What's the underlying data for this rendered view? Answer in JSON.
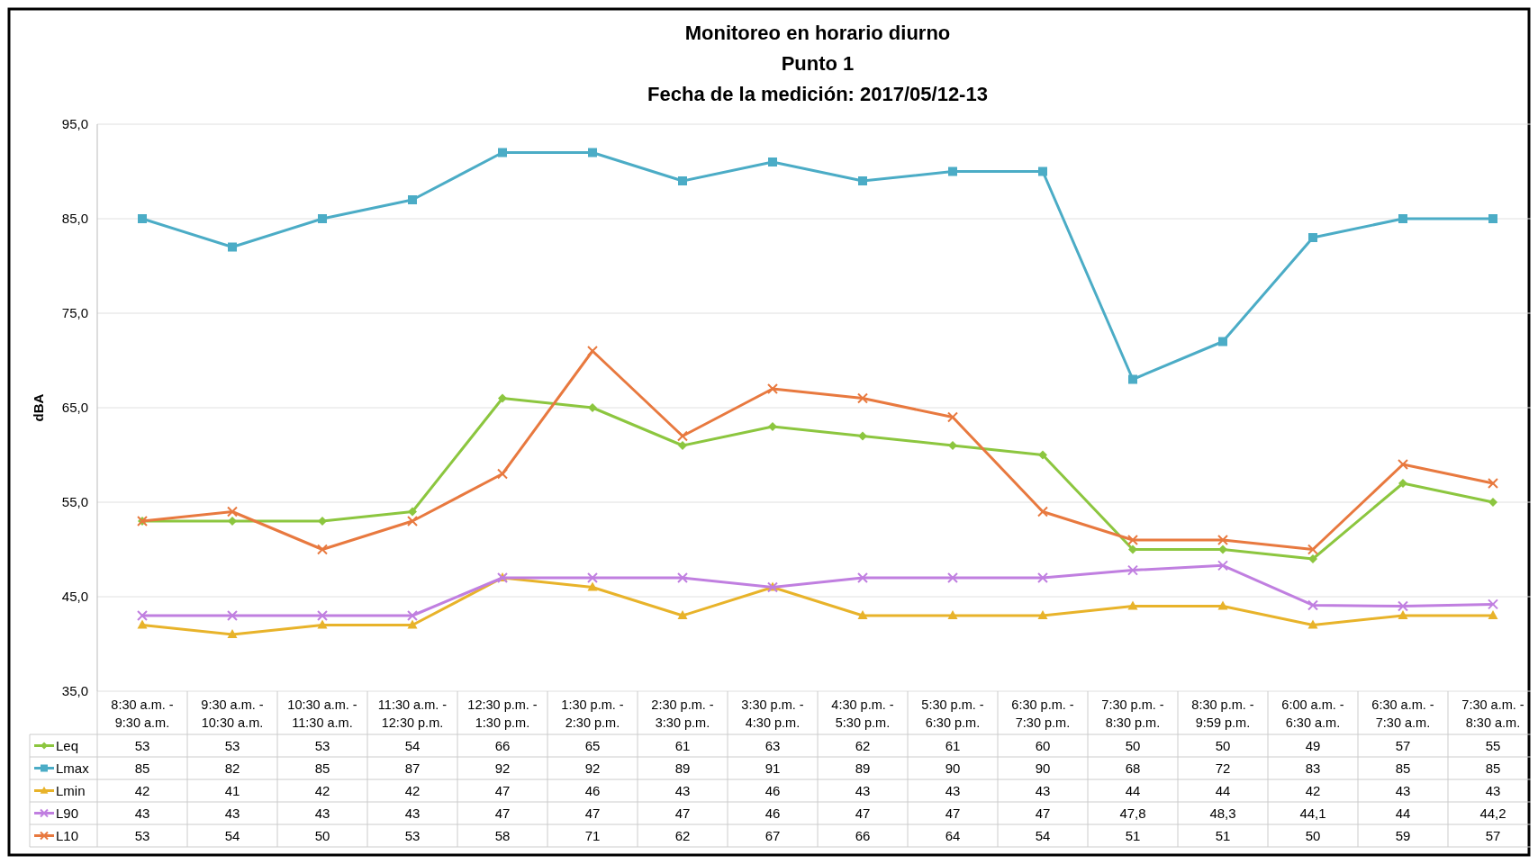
{
  "chart_data": {
    "type": "line",
    "title": "Monitoreo en horario diurno",
    "subtitle": "Punto 1\nFecha de la medición: 2017/05/12-13",
    "ylabel": "dBA",
    "categories": [
      "8:30 a.m. - 9:30 a.m.",
      "9:30 a.m. - 10:30 a.m.",
      "10:30 a.m. - 11:30 a.m.",
      "11:30 a.m. - 12:30 p.m.",
      "12:30 p.m. - 1:30 p.m.",
      "1:30 p.m. - 2:30 p.m.",
      "2:30 p.m. - 3:30 p.m.",
      "3:30 p.m. - 4:30 p.m.",
      "4:30 p.m. - 5:30 p.m.",
      "5:30 p.m. - 6:30 p.m.",
      "6:30 p.m. - 7:30 p.m.",
      "7:30 p.m. - 8:30 p.m.",
      "8:30 p.m. - 9:59 p.m.",
      "6:00 a.m. - 6:30 a.m.",
      "6:30 a.m. - 7:30 a.m.",
      "7:30 a.m. - 8:30 a.m."
    ],
    "series": [
      {
        "name": "Leq",
        "color": "#8cc63f",
        "marker": "diamond",
        "values": [
          53,
          53,
          53,
          54,
          66,
          65,
          61,
          63,
          62,
          61,
          60,
          50,
          50,
          49,
          57,
          55
        ]
      },
      {
        "name": "Lmax",
        "color": "#4bacc6",
        "marker": "square",
        "values": [
          85,
          82,
          85,
          87,
          92,
          92,
          89,
          91,
          89,
          90,
          90,
          68,
          72,
          83,
          85,
          85
        ]
      },
      {
        "name": "Lmin",
        "color": "#e8b32a",
        "marker": "triangle",
        "values": [
          42,
          41,
          42,
          42,
          47,
          46,
          43,
          46,
          43,
          43,
          43,
          44,
          44,
          42,
          43,
          43
        ]
      },
      {
        "name": "L90",
        "color": "#c07fe0",
        "marker": "cross",
        "values": [
          43,
          43,
          43,
          43,
          47,
          47,
          47,
          46,
          47,
          47,
          47,
          47.8,
          48.3,
          44.1,
          44,
          44.2
        ],
        "value_labels": [
          "43",
          "43",
          "43",
          "43",
          "47",
          "47",
          "47",
          "46",
          "47",
          "47",
          "47",
          "47,8",
          "48,3",
          "44,1",
          "44",
          "44,2"
        ]
      },
      {
        "name": "L10",
        "color": "#e8793f",
        "marker": "cross",
        "values": [
          53,
          54,
          50,
          53,
          58,
          71,
          62,
          67,
          66,
          64,
          54,
          51,
          51,
          50,
          59,
          57
        ]
      }
    ],
    "ylim": [
      35,
      95
    ],
    "yticks": [
      {
        "value": 35,
        "label": "35,0"
      },
      {
        "value": 45,
        "label": "45,0"
      },
      {
        "value": 55,
        "label": "55,0"
      },
      {
        "value": 65,
        "label": "65,0"
      },
      {
        "value": 75,
        "label": "75,0"
      },
      {
        "value": 85,
        "label": "85,0"
      },
      {
        "value": 95,
        "label": "95,0"
      }
    ],
    "grid": "y",
    "legend": "bottom",
    "data_labels": true
  }
}
